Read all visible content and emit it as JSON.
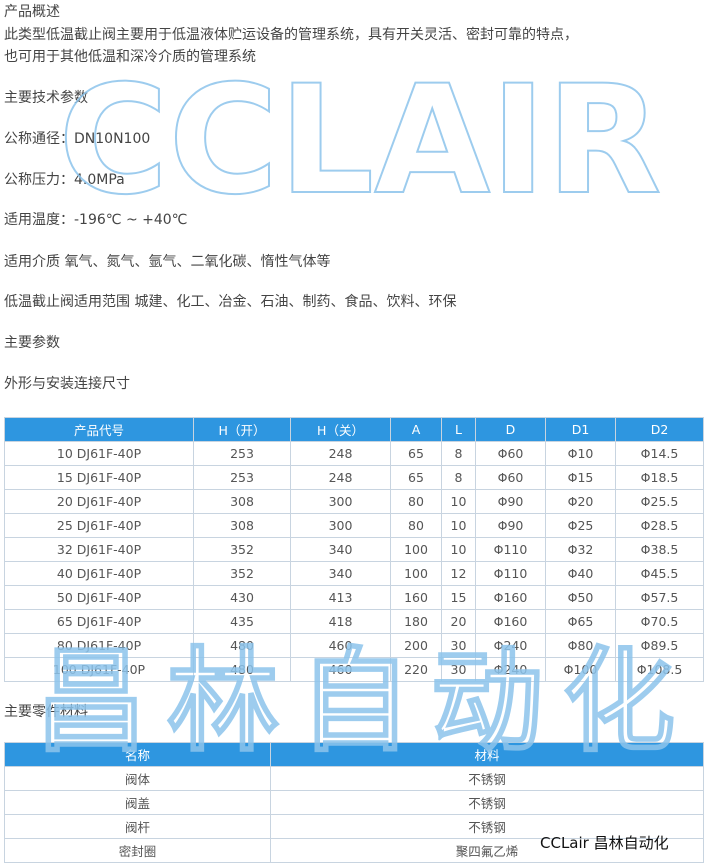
{
  "overview": {
    "title": "产品概述",
    "lines": [
      "此类型低温截止阀主要用于低温液体贮运设备的管理系统，具有开关灵活、密封可靠的特点，",
      "也可用于其他低温和深冷介质的管理系统"
    ]
  },
  "specs": {
    "title": "主要技术参数",
    "items": [
      "公称通径：DN10N100",
      "公称压力：4.0MPa",
      "适用温度：-196℃ ~ +40℃",
      "适用介质   氧气、氮气、氩气、二氧化碳、惰性气体等",
      "低温截止阀适用范围 城建、化工、冶金、石油、制药、食品、饮料、环保"
    ]
  },
  "params_title": "主要参数",
  "dimensions": {
    "title": "外形与安装连接尺寸",
    "header": [
      "产品代号",
      "H（开）",
      "H（关）",
      "A",
      "L",
      "D",
      "D1",
      "D2"
    ],
    "rows": [
      [
        "10 DJ61F-40P",
        "253",
        "248",
        "65",
        "8",
        "Φ60",
        "Φ10",
        "Φ14.5"
      ],
      [
        "15 DJ61F-40P",
        "253",
        "248",
        "65",
        "8",
        "Φ60",
        "Φ15",
        "Φ18.5"
      ],
      [
        "20 DJ61F-40P",
        "308",
        "300",
        "80",
        "10",
        "Φ90",
        "Φ20",
        "Φ25.5"
      ],
      [
        "25 DJ61F-40P",
        "308",
        "300",
        "80",
        "10",
        "Φ90",
        "Φ25",
        "Φ28.5"
      ],
      [
        "32 DJ61F-40P",
        "352",
        "340",
        "100",
        "10",
        "Φ110",
        "Φ32",
        "Φ38.5"
      ],
      [
        "40 DJ61F-40P",
        "352",
        "340",
        "100",
        "12",
        "Φ110",
        "Φ40",
        "Φ45.5"
      ],
      [
        "50 DJ61F-40P",
        "430",
        "413",
        "160",
        "15",
        "Φ160",
        "Φ50",
        "Φ57.5"
      ],
      [
        "65 DJ61F-40P",
        "435",
        "418",
        "180",
        "20",
        "Φ160",
        "Φ65",
        "Φ70.5"
      ],
      [
        "80 DJ61F-40P",
        "480",
        "460",
        "200",
        "30",
        "Φ240",
        "Φ80",
        "Φ89.5"
      ],
      [
        "100 DJ61F-40P",
        "480",
        "460",
        "220",
        "30",
        "Φ240",
        "Φ100",
        "Φ108.5"
      ]
    ]
  },
  "materials": {
    "title": "主要零件材料",
    "header": [
      "名称",
      "材料"
    ],
    "rows": [
      [
        "阀体",
        "不锈钢"
      ],
      [
        "阀盖",
        "不锈钢"
      ],
      [
        "阀杆",
        "不锈钢"
      ],
      [
        "密封圈",
        "聚四氟乙烯"
      ]
    ]
  },
  "watermarks": [
    "CCLAIR",
    "昌林自动化"
  ],
  "signature": "CCLair 昌林自动化"
}
